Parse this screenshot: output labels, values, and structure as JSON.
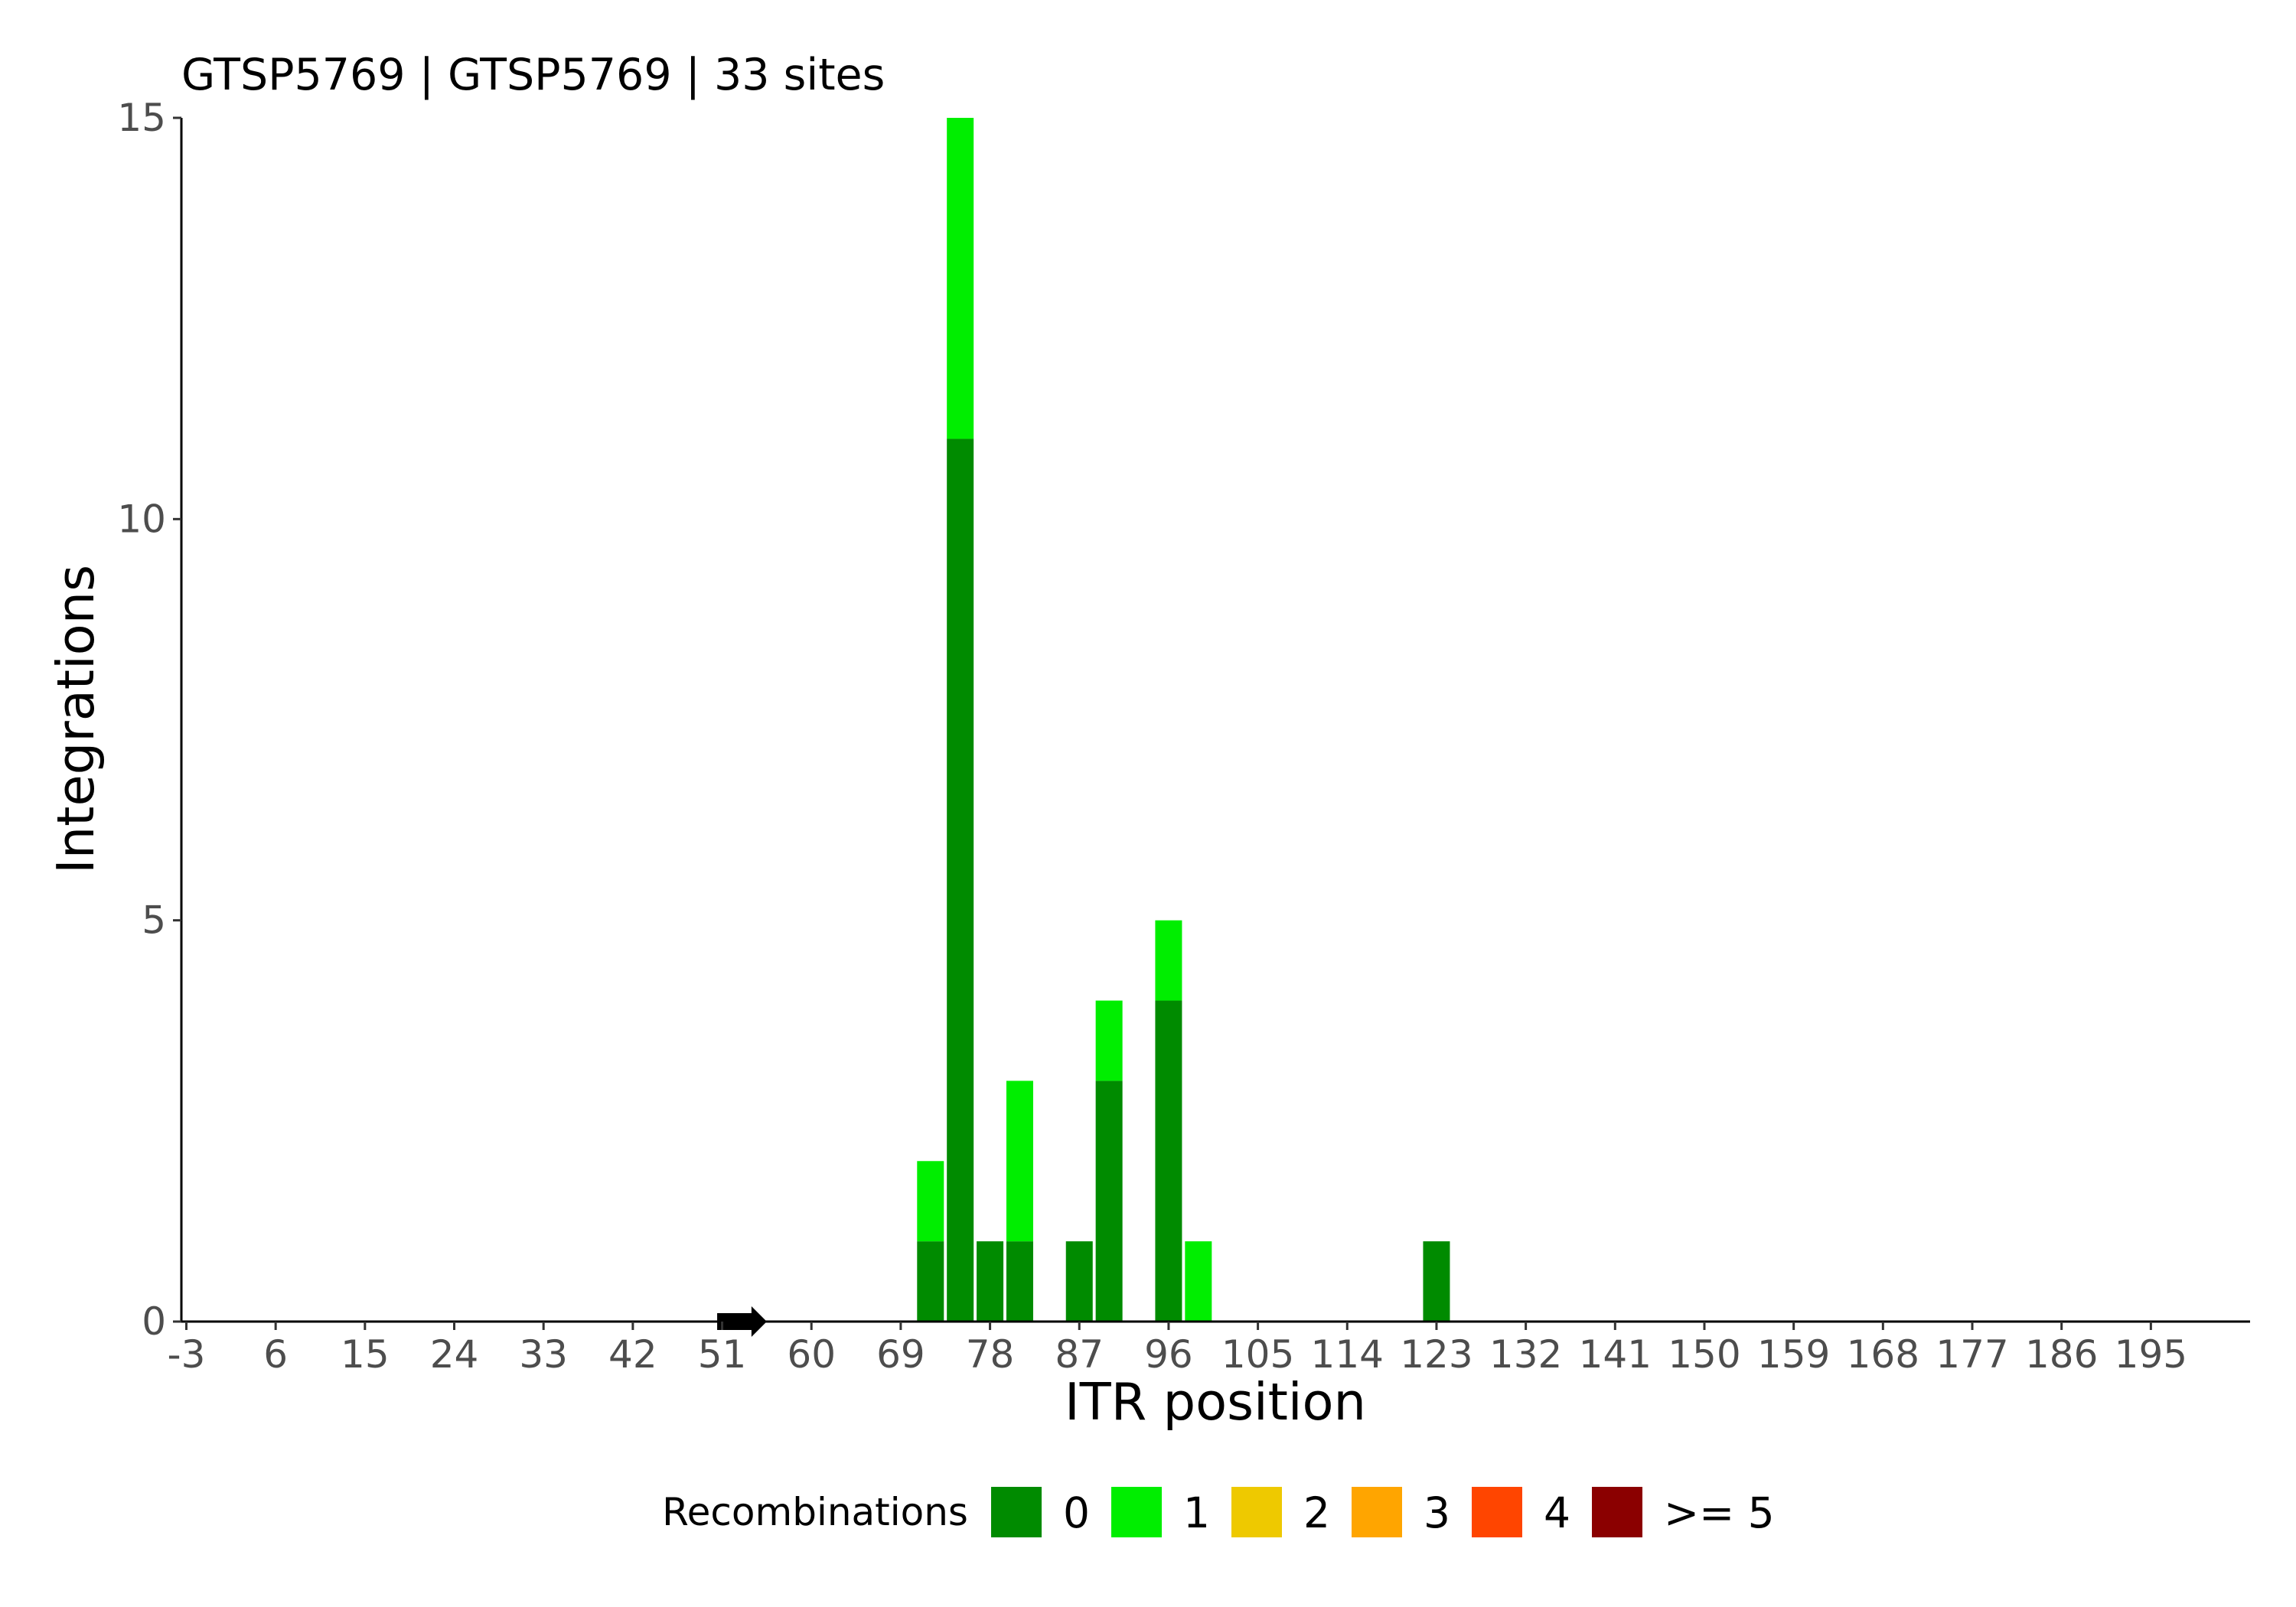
{
  "chart_data": {
    "type": "bar",
    "stacked": true,
    "title": "GTSP5769 | GTSP5769 | 33 sites",
    "xlabel": "ITR position",
    "ylabel": "Integrations",
    "ylim": [
      0,
      15
    ],
    "xlim": [
      -3.5,
      205
    ],
    "y_ticks": [
      0,
      5,
      10,
      15
    ],
    "x_ticks": [
      -3,
      6,
      15,
      24,
      33,
      42,
      51,
      60,
      69,
      78,
      87,
      96,
      105,
      114,
      123,
      132,
      141,
      150,
      159,
      168,
      177,
      186,
      195
    ],
    "bin_width": 3,
    "categories": [
      72,
      75,
      78,
      81,
      87,
      90,
      96,
      99,
      123
    ],
    "series": [
      {
        "name": "0",
        "color": "#008B00",
        "values": [
          1,
          11,
          1,
          1,
          1,
          3,
          4,
          0,
          1
        ]
      },
      {
        "name": "1",
        "color": "#00EE00",
        "values": [
          1,
          4,
          0,
          2,
          0,
          1,
          1,
          1,
          0
        ]
      },
      {
        "name": "2",
        "color": "#EEC900",
        "values": [
          0,
          0,
          0,
          0,
          0,
          0,
          0,
          0,
          0
        ]
      },
      {
        "name": "3",
        "color": "#FFA500",
        "values": [
          0,
          0,
          0,
          0,
          0,
          0,
          0,
          0,
          0
        ]
      },
      {
        "name": "4",
        "color": "#FF4500",
        "values": [
          0,
          0,
          0,
          0,
          0,
          0,
          0,
          0,
          0
        ]
      },
      {
        "name": ">= 5",
        "color": "#8B0000",
        "values": [
          0,
          0,
          0,
          0,
          0,
          0,
          0,
          0,
          0
        ]
      }
    ],
    "marker": {
      "type": "arrow",
      "x_start": 50.5,
      "x_end": 55.5,
      "direction": "right",
      "color": "#000000"
    },
    "legend": {
      "title": "Recombinations",
      "position": "bottom"
    },
    "grid": false
  }
}
